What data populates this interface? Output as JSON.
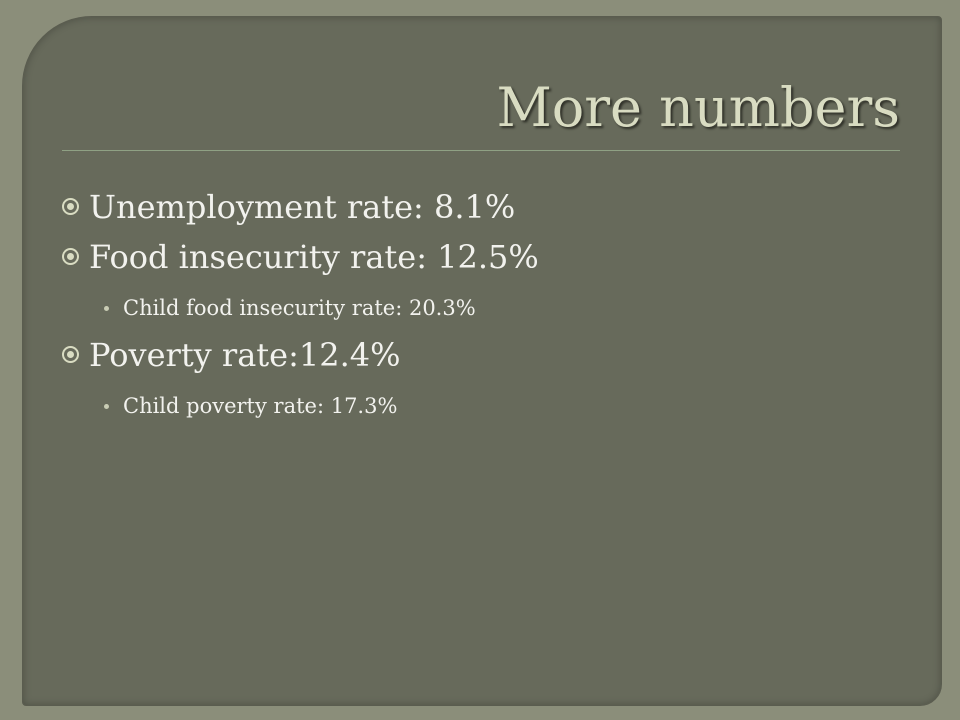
{
  "title": "More numbers",
  "bullets": [
    {
      "text": "Unemployment rate: 8.1%"
    },
    {
      "text": "Food insecurity rate: 12.5%",
      "sub": [
        "Child food insecurity rate: 20.3%"
      ]
    },
    {
      "text": "Poverty rate:12.4%",
      "sub": [
        "Child poverty rate: 17.3%"
      ]
    }
  ]
}
